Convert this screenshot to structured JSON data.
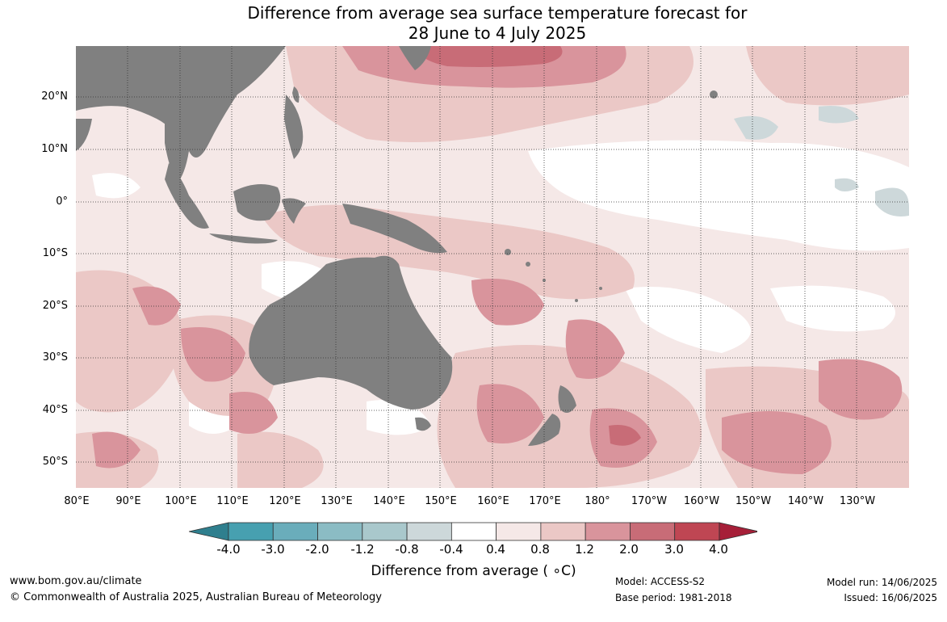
{
  "title": {
    "line1": "Difference from average sea surface temperature forecast for",
    "line2": "28 June to 4 July 2025"
  },
  "map": {
    "lat_labels": [
      "20°N",
      "10°N",
      "0°",
      "10°S",
      "20°S",
      "30°S",
      "40°S",
      "50°S"
    ],
    "lon_labels": [
      "80°E",
      "90°E",
      "100°E",
      "110°E",
      "120°E",
      "130°E",
      "140°E",
      "150°E",
      "160°E",
      "170°E",
      "180°",
      "170°W",
      "160°W",
      "150°W",
      "140°W",
      "130°W"
    ],
    "land_color": "#808080",
    "grid": true
  },
  "colorbar": {
    "ticks": [
      "-4.0",
      "-3.0",
      "-2.0",
      "-1.2",
      "-0.8",
      "-0.4",
      "0.4",
      "0.8",
      "1.2",
      "2.0",
      "3.0",
      "4.0"
    ],
    "colors": [
      "#2f7f8e",
      "#47a0b0",
      "#6aadbb",
      "#8bbcc4",
      "#a9c8cc",
      "#cdd8da",
      "#ffffff",
      "#f5e8e7",
      "#ebc8c6",
      "#d9949c",
      "#c86c77",
      "#bf4653",
      "#a61f38"
    ],
    "label": "Difference from average ( ∘C)"
  },
  "footer": {
    "url": "www.bom.gov.au/climate",
    "copyright": "© Commonwealth of Australia 2025, Australian Bureau of Meteorology",
    "model": "Model: ACCESS-S2",
    "base_period": "Base period: 1981-2018",
    "model_run": "Model run: 14/06/2025",
    "issued": "Issued: 16/06/2025"
  }
}
